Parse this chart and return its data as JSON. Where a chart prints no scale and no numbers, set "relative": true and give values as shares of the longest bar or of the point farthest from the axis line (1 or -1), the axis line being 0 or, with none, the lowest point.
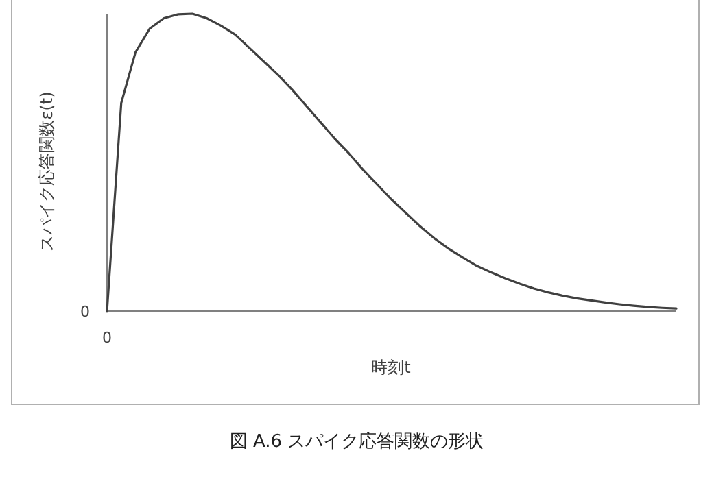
{
  "chart_data": {
    "type": "line",
    "relative": true,
    "title": "図 A.6 スパイク応答関数の形状",
    "xlabel": "時刻t",
    "ylabel": "スパイク応答関数ε(t)",
    "annotations": [
      "0",
      "0"
    ],
    "categories": [
      null,
      null,
      null,
      null,
      null,
      null,
      null,
      null,
      null,
      null,
      null,
      null,
      null,
      null,
      null,
      null,
      null,
      null,
      null,
      null,
      null,
      null,
      null,
      null,
      null,
      null,
      null,
      null,
      null,
      null,
      null,
      null,
      null,
      null,
      null,
      null,
      null,
      null,
      null,
      null,
      null
    ],
    "series": [
      {
        "color": "#404040",
        "values": [
          0,
          0.7,
          0.87,
          0.95,
          0.985,
          0.998,
          1.0,
          0.985,
          0.96,
          0.93,
          0.885,
          0.84,
          0.795,
          0.745,
          0.69,
          0.635,
          0.58,
          0.53,
          0.475,
          0.425,
          0.375,
          0.33,
          0.285,
          0.245,
          0.21,
          0.18,
          0.152,
          0.13,
          0.11,
          0.092,
          0.076,
          0.063,
          0.052,
          0.043,
          0.036,
          0.029,
          0.023,
          0.018,
          0.014,
          0.011,
          0.009
        ]
      }
    ],
    "grid": false,
    "marker": "none",
    "line_style": "solid"
  }
}
